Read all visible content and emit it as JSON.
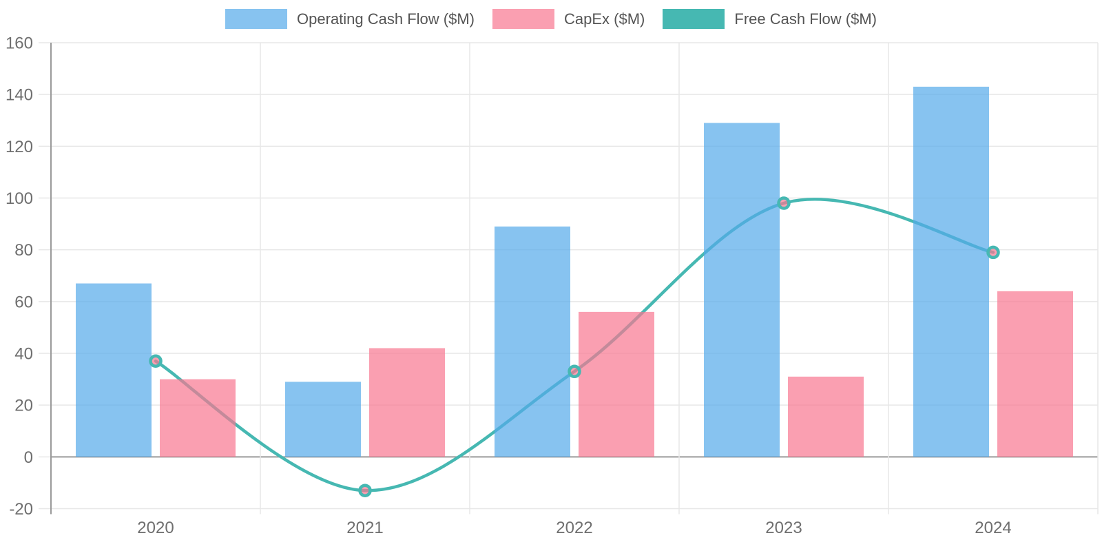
{
  "chart_data": {
    "type": "combo",
    "title": "",
    "xlabel": "",
    "ylabel": "",
    "categories": [
      "2020",
      "2021",
      "2022",
      "2023",
      "2024"
    ],
    "series": [
      {
        "name": "Operating Cash Flow ($M)",
        "kind": "bar",
        "color": "#54A9EA",
        "fill_opacity": 0.7,
        "values": [
          67,
          29,
          89,
          129,
          143
        ]
      },
      {
        "name": "CapEx ($M)",
        "kind": "bar",
        "color": "#F87690",
        "fill_opacity": 0.7,
        "values": [
          30,
          42,
          56,
          31,
          64
        ]
      },
      {
        "name": "Free Cash Flow ($M)",
        "kind": "line",
        "color": "#46B8B2",
        "point_fill": "#F87690",
        "point_fill_opacity": 0.7,
        "values": [
          37,
          -13,
          33,
          98,
          79
        ]
      }
    ],
    "ylim": [
      -20,
      160
    ],
    "ytick_step": 20,
    "yticks": [
      "-20",
      "0",
      "20",
      "40",
      "60",
      "80",
      "100",
      "120",
      "140",
      "160"
    ],
    "grid": true,
    "legend_position": "top",
    "line_style": "smooth"
  },
  "theme": {
    "background": "#FFFFFF",
    "grid_color": "#E7E7E7",
    "axis_color": "#9A9A9A",
    "zero_line_color": "#9A9A9A",
    "tick_text_color": "#6F6F6F",
    "legend_text_color": "#545454"
  }
}
